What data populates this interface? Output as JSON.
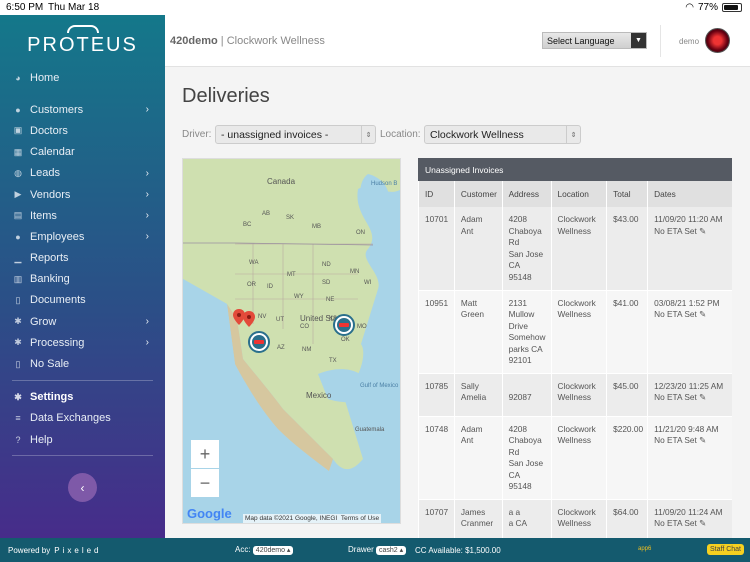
{
  "status": {
    "time": "6:50 PM",
    "date": "Thu Mar 18",
    "battery": "77%"
  },
  "brand": {
    "name": "PROTEUS"
  },
  "nav": [
    {
      "label": "Home",
      "icon": "palette-icon",
      "chev": ""
    },
    {
      "gap": true
    },
    {
      "label": "Customers",
      "icon": "user-icon",
      "chev": "›"
    },
    {
      "label": "Doctors",
      "icon": "briefcase-icon",
      "chev": ""
    },
    {
      "label": "Calendar",
      "icon": "calendar-icon",
      "chev": ""
    },
    {
      "label": "Leads",
      "icon": "users-icon",
      "chev": "›"
    },
    {
      "label": "Vendors",
      "icon": "truck-icon",
      "chev": "›"
    },
    {
      "label": "Items",
      "icon": "cubes-icon",
      "chev": "›"
    },
    {
      "label": "Employees",
      "icon": "user-tie-icon",
      "chev": "›"
    },
    {
      "label": "Reports",
      "icon": "chart-icon",
      "chev": ""
    },
    {
      "label": "Banking",
      "icon": "bank-icon",
      "chev": ""
    },
    {
      "label": "Documents",
      "icon": "document-icon",
      "chev": ""
    },
    {
      "label": "Grow",
      "icon": "leaf-icon",
      "chev": "›"
    },
    {
      "label": "Processing",
      "icon": "gears-icon",
      "chev": "›"
    },
    {
      "label": "No Sale",
      "icon": "receipt-icon",
      "chev": ""
    },
    {
      "sep": true
    },
    {
      "label": "Settings",
      "icon": "gear-icon",
      "chev": "",
      "bold": true
    },
    {
      "label": "Data Exchanges",
      "icon": "exchange-icon",
      "chev": ""
    },
    {
      "label": "Help",
      "icon": "help-icon",
      "chev": ""
    },
    {
      "sep": true
    }
  ],
  "collapse_icon": "‹",
  "topbar": {
    "store": "420demo",
    "separator": " | ",
    "company": "Clockwork Wellness",
    "language": "Select Language",
    "user": "demo"
  },
  "page": {
    "title": "Deliveries",
    "driver_label": "Driver:",
    "driver_value": "- unassigned invoices -",
    "location_label": "Location:",
    "location_value": "Clockwork Wellness"
  },
  "map": {
    "labels": [
      "Canada",
      "Hudson B",
      "United States",
      "Mexico",
      "Gulf of Mexico",
      "Guatemala",
      "MT",
      "ND",
      "SD",
      "WY",
      "NE",
      "UT",
      "CO",
      "KS",
      "OK",
      "AZ",
      "NM",
      "TX",
      "MO",
      "NV",
      "OR",
      "WA",
      "ID",
      "MN",
      "WI",
      "AB",
      "SK",
      "MB",
      "BC",
      "ON"
    ],
    "zoom_in": "+",
    "zoom_out": "−",
    "google": "Google",
    "attribution": "Map data ©2021 Google, INEGI",
    "terms": "Terms of Use"
  },
  "table": {
    "title": "Unassigned Invoices",
    "columns": [
      "ID",
      "Customer",
      "Address",
      "Location",
      "Total",
      "Dates"
    ],
    "rows": [
      {
        "id": "10701",
        "customer": [
          "Adam",
          "Ant"
        ],
        "address": [
          "4208",
          "Chaboya",
          "Rd",
          "San Jose",
          "CA",
          "95148"
        ],
        "location": [
          "Clockwork",
          "Wellness"
        ],
        "total": "$43.00",
        "dates": [
          "11/09/20 11:20 AM",
          "No ETA Set ✎"
        ]
      },
      {
        "id": "10951",
        "customer": [
          "Matt",
          "Green"
        ],
        "address": [
          "2131",
          "Mullow",
          "Drive",
          "Somehow",
          "parks CA",
          "92101"
        ],
        "location": [
          "Clockwork",
          "Wellness"
        ],
        "total": "$41.00",
        "dates": [
          "03/08/21 1:52 PM",
          "No ETA Set ✎"
        ]
      },
      {
        "id": "10785",
        "customer": [
          "Sally",
          "Amelia"
        ],
        "address": [
          "",
          "92087"
        ],
        "location": [
          "Clockwork",
          "Wellness"
        ],
        "total": "$45.00",
        "dates": [
          "12/23/20 11:25 AM",
          "No ETA Set ✎"
        ]
      },
      {
        "id": "10748",
        "customer": [
          "Adam",
          "Ant"
        ],
        "address": [
          "4208",
          "Chaboya",
          "Rd",
          "San Jose",
          "CA",
          "95148"
        ],
        "location": [
          "Clockwork",
          "Wellness"
        ],
        "total": "$220.00",
        "dates": [
          "11/21/20 9:48 AM",
          "No ETA Set ✎"
        ]
      },
      {
        "id": "10707",
        "customer": [
          "James",
          "Cranmer"
        ],
        "address": [
          "a a",
          "a CA"
        ],
        "location": [
          "Clockwork",
          "Wellness"
        ],
        "total": "$64.00",
        "dates": [
          "11/09/20 11:24 AM",
          "No ETA Set ✎"
        ]
      }
    ]
  },
  "footer": {
    "powered": "Powered by",
    "brand": "Pixeled",
    "acc_label": "Acc:",
    "acc_value": "420demo ▴",
    "drawer_label": "Drawer",
    "drawer_value": "cash2 ▴",
    "cc": "CC Available: $1,500.00",
    "app": "app6",
    "chat": "Staff Chat"
  }
}
